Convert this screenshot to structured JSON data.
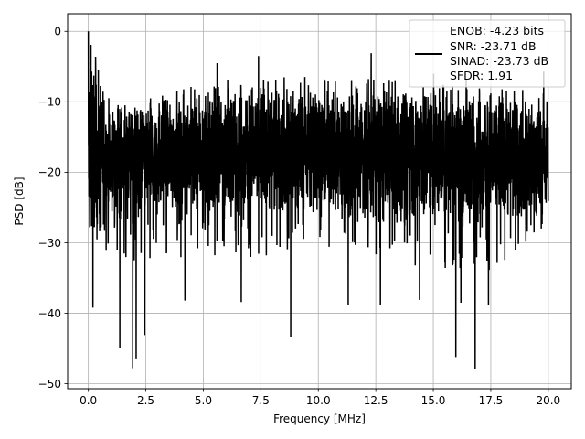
{
  "chart_data": {
    "type": "line",
    "title": "",
    "xlabel": "Frequency [MHz]",
    "ylabel": "PSD [dB]",
    "xlim": [
      -0.9,
      21.0
    ],
    "ylim": [
      -50.7,
      2.5
    ],
    "x_ticks": [
      0.0,
      2.5,
      5.0,
      7.5,
      10.0,
      12.5,
      15.0,
      17.5,
      20.0
    ],
    "x_tick_labels": [
      "0.0",
      "2.5",
      "5.0",
      "7.5",
      "10.0",
      "12.5",
      "15.0",
      "17.5",
      "20.0"
    ],
    "y_ticks": [
      0,
      -10,
      -20,
      -30,
      -40,
      -50
    ],
    "y_tick_labels": [
      "0",
      "−10",
      "−20",
      "−30",
      "−40",
      "−50"
    ],
    "grid": true,
    "legend_position": "top-right",
    "series_color": "#000000",
    "legend_lines": [
      "ENOB: -4.23 bits",
      "SNR: -23.71 dB",
      "SINAD: -23.73 dB",
      "SFDR: 1.91"
    ],
    "series": [
      {
        "name": "ENOB: -4.23 bits\nSNR: -23.71 dB\nSINAD: -23.73 dB\nSFDR: 1.91",
        "x_range": [
          0.0,
          20.0
        ],
        "approximate": true,
        "trend": {
          "x": [
            0.0,
            1.0,
            2.5,
            5.0,
            7.5,
            10.0,
            12.5,
            15.0,
            17.5,
            20.0
          ],
          "upper_envelope": [
            0.0,
            -10.0,
            -9.0,
            -7.0,
            -6.0,
            -6.0,
            -6.5,
            -6.0,
            -7.0,
            -8.5
          ],
          "median": [
            -17.0,
            -18.0,
            -17.5,
            -17.0,
            -16.5,
            -16.5,
            -17.0,
            -17.0,
            -17.5,
            -18.0
          ],
          "lower_envelope": [
            -25.0,
            -32.0,
            -35.0,
            -33.0,
            -32.0,
            -31.0,
            -32.0,
            -35.0,
            -34.0,
            -28.0
          ]
        },
        "notable_points": [
          {
            "x": 0.0,
            "y": 0.0
          },
          {
            "x": 0.2,
            "y": -39.2
          },
          {
            "x": 1.37,
            "y": -44.9
          },
          {
            "x": 1.93,
            "y": -47.8
          },
          {
            "x": 2.08,
            "y": -46.4
          },
          {
            "x": 2.45,
            "y": -43.1
          },
          {
            "x": 4.2,
            "y": -38.2
          },
          {
            "x": 6.65,
            "y": -38.4
          },
          {
            "x": 8.8,
            "y": -43.4
          },
          {
            "x": 11.3,
            "y": -38.8
          },
          {
            "x": 12.7,
            "y": -38.8
          },
          {
            "x": 15.98,
            "y": -46.2
          },
          {
            "x": 16.2,
            "y": -38.5
          },
          {
            "x": 16.82,
            "y": -47.9
          },
          {
            "x": 17.4,
            "y": -38.9
          },
          {
            "x": 14.4,
            "y": -38.1
          },
          {
            "x": 7.4,
            "y": -3.5
          },
          {
            "x": 12.3,
            "y": -3.1
          },
          {
            "x": 5.6,
            "y": -4.5
          },
          {
            "x": 19.8,
            "y": -5.7
          }
        ]
      }
    ]
  }
}
